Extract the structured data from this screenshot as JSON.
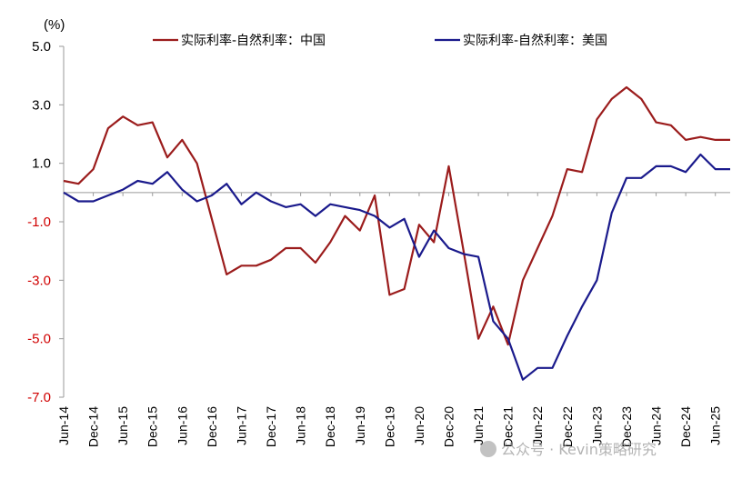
{
  "chart_data": {
    "type": "line",
    "unit_label": "(%)",
    "ylim": [
      -7.0,
      5.0
    ],
    "yticks": [
      "5.0",
      "3.0",
      "1.0",
      "-1.0",
      "-3.0",
      "-5.0",
      "-7.0"
    ],
    "categories": [
      "Jun-14",
      "Dec-14",
      "Jun-15",
      "Dec-15",
      "Jun-16",
      "Dec-16",
      "Jun-17",
      "Dec-17",
      "Jun-18",
      "Dec-18",
      "Jun-19",
      "Dec-19",
      "Jun-20",
      "Dec-20",
      "Jun-21",
      "Dec-21",
      "Jun-22",
      "Dec-22",
      "Jun-23",
      "Dec-23",
      "Jun-24",
      "Dec-24",
      "Jun-25"
    ],
    "legend_position": "top",
    "grid": false,
    "series": [
      {
        "name": "实际利率-自然利率：中国",
        "color": "#9b1c1c",
        "x": [
          0,
          1,
          2,
          3,
          4,
          5,
          6,
          7,
          8,
          9,
          10,
          11,
          12,
          13,
          14,
          15,
          16,
          17,
          18,
          19,
          20,
          21,
          22,
          23,
          24,
          25,
          26,
          27,
          28,
          29,
          30,
          31,
          32,
          33,
          34,
          35,
          36,
          37,
          38,
          39,
          40,
          41,
          42,
          43,
          44,
          45
        ],
        "values": [
          0.4,
          0.3,
          0.8,
          2.2,
          2.6,
          2.3,
          2.4,
          1.2,
          1.8,
          1.0,
          -0.9,
          -2.8,
          -2.5,
          -2.5,
          -2.3,
          -1.9,
          -1.9,
          -2.4,
          -1.7,
          -0.8,
          -1.3,
          -0.1,
          -3.5,
          -3.3,
          -1.1,
          -1.7,
          0.9,
          -2.0,
          -5.0,
          -3.9,
          -5.2,
          -3.0,
          -1.9,
          -0.8,
          0.8,
          0.7,
          2.5,
          3.2,
          3.6,
          3.2,
          2.4,
          2.3,
          1.8,
          1.9,
          1.8,
          1.8
        ]
      },
      {
        "name": "实际利率-自然利率：美国",
        "color": "#1a1a8c",
        "x": [
          0,
          1,
          2,
          3,
          4,
          5,
          6,
          7,
          8,
          9,
          10,
          11,
          12,
          13,
          14,
          15,
          16,
          17,
          18,
          19,
          20,
          21,
          22,
          23,
          24,
          25,
          26,
          27,
          28,
          29,
          30,
          31,
          32,
          33,
          34,
          35,
          36,
          37,
          38,
          39,
          40,
          41,
          42,
          43,
          44,
          45
        ],
        "values": [
          0.0,
          -0.3,
          -0.3,
          -0.1,
          0.1,
          0.4,
          0.3,
          0.7,
          0.1,
          -0.3,
          -0.1,
          0.3,
          -0.4,
          0.0,
          -0.3,
          -0.5,
          -0.4,
          -0.8,
          -0.4,
          -0.5,
          -0.6,
          -0.8,
          -1.2,
          -0.9,
          -2.2,
          -1.3,
          -1.9,
          -2.1,
          -2.2,
          -4.4,
          -5.0,
          -6.4,
          -6.0,
          -6.0,
          -4.9,
          -3.9,
          -3.0,
          -0.7,
          0.5,
          0.5,
          0.9,
          0.9,
          0.7,
          1.3,
          0.8,
          0.8
        ]
      }
    ]
  },
  "watermark": "公众号 · Kevin策略研究"
}
